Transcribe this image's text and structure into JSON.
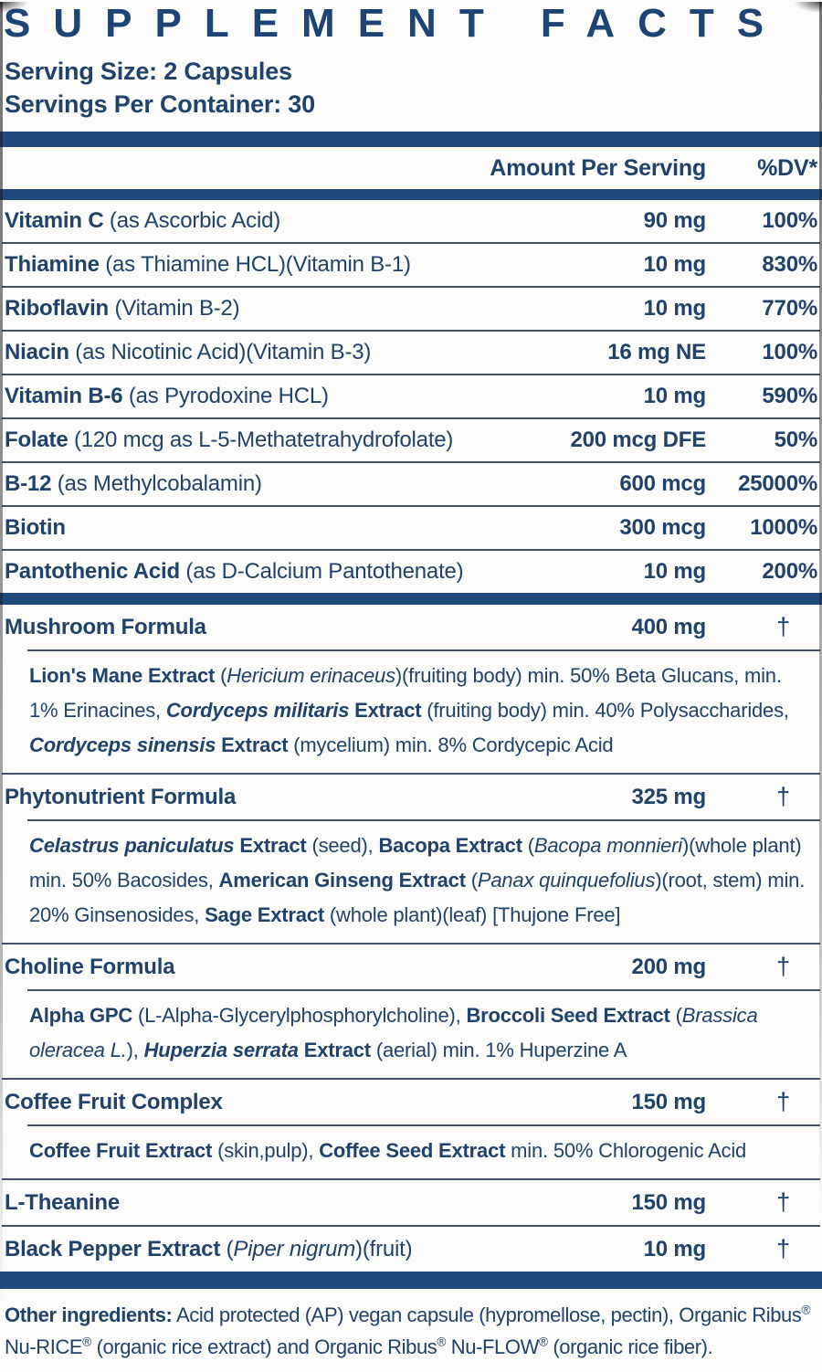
{
  "colors": {
    "title_navy": "#1d4474",
    "text_navy": "#20426b",
    "bar_blue": "#20497e",
    "rule_gray": "#46536a",
    "background": "#fbfbf9"
  },
  "header": {
    "title": "SUPPLEMENT FACTS",
    "serving_size": "Serving Size: 2 Capsules",
    "servings_per_container": "Servings Per Container: 30",
    "col_amount": "Amount Per Serving",
    "col_dv": "%DV*"
  },
  "vitamins": [
    {
      "segs": [
        {
          "t": "Vitamin C",
          "b": 1
        },
        {
          "t": " (as Ascorbic Acid)"
        }
      ],
      "amount": "90 mg",
      "dv": "100%"
    },
    {
      "segs": [
        {
          "t": "Thiamine",
          "b": 1
        },
        {
          "t": " (as Thiamine HCL)(Vitamin B-1)"
        }
      ],
      "amount": "10 mg",
      "dv": "830%"
    },
    {
      "segs": [
        {
          "t": "Riboflavin",
          "b": 1
        },
        {
          "t": " (Vitamin B-2)"
        }
      ],
      "amount": "10 mg",
      "dv": "770%"
    },
    {
      "segs": [
        {
          "t": "Niacin",
          "b": 1
        },
        {
          "t": " (as Nicotinic Acid)(Vitamin B-3)"
        }
      ],
      "amount": "16 mg NE",
      "dv": "100%"
    },
    {
      "segs": [
        {
          "t": "Vitamin B-6",
          "b": 1
        },
        {
          "t": " (as Pyrodoxine HCL)"
        }
      ],
      "amount": "10 mg",
      "dv": "590%"
    },
    {
      "segs": [
        {
          "t": "Folate",
          "b": 1
        },
        {
          "t": " (120 mcg as L-5-Methatetrahydrofolate)"
        }
      ],
      "amount": "200 mcg DFE",
      "dv": "50%"
    },
    {
      "segs": [
        {
          "t": "B-12",
          "b": 1
        },
        {
          "t": " (as Methylcobalamin)"
        }
      ],
      "amount": "600 mcg",
      "dv": "25000%"
    },
    {
      "segs": [
        {
          "t": "Biotin",
          "b": 1
        }
      ],
      "amount": "300 mcg",
      "dv": "1000%"
    },
    {
      "segs": [
        {
          "t": "Pantothenic Acid",
          "b": 1
        },
        {
          "t": " (as D-Calcium Pantothenate)"
        }
      ],
      "amount": "10 mg",
      "dv": "200%"
    }
  ],
  "sections": [
    {
      "segs": [
        {
          "t": "Mushroom Formula",
          "b": 1
        }
      ],
      "amount": "400 mg",
      "dv": "†",
      "sub": [
        {
          "t": "Lion's Mane Extract",
          "b": 1
        },
        {
          "t": " ("
        },
        {
          "t": "Hericium erinaceus",
          "i": 1
        },
        {
          "t": ")(fruiting body) min. 50% Beta Glucans, min. 1% Erinacines, "
        },
        {
          "t": "Cordyceps militaris",
          "b": 1,
          "i": 1
        },
        {
          "t": " Extract",
          "b": 1
        },
        {
          "t": " (fruiting body) min. 40% Polysaccharides, "
        },
        {
          "t": "Cordyceps sinensis",
          "b": 1,
          "i": 1
        },
        {
          "t": " Extract",
          "b": 1
        },
        {
          "t": " (mycelium) min. 8% Cordycepic Acid"
        }
      ]
    },
    {
      "segs": [
        {
          "t": "Phytonutrient Formula",
          "b": 1
        }
      ],
      "amount": "325 mg",
      "dv": "†",
      "sub": [
        {
          "t": "Celastrus paniculatus",
          "b": 1,
          "i": 1
        },
        {
          "t": " Extract",
          "b": 1
        },
        {
          "t": " (seed), "
        },
        {
          "t": "Bacopa Extract",
          "b": 1
        },
        {
          "t": " ("
        },
        {
          "t": "Bacopa monnieri",
          "i": 1
        },
        {
          "t": ")(whole plant) min. 50% Bacosides, "
        },
        {
          "t": "American Ginseng Extract",
          "b": 1
        },
        {
          "t": " ("
        },
        {
          "t": "Panax quinquefolius",
          "i": 1
        },
        {
          "t": ")(root, stem) min. 20% Ginsenosides, "
        },
        {
          "t": "Sage Extract",
          "b": 1
        },
        {
          "t": " (whole plant)(leaf) [Thujone Free]"
        }
      ]
    },
    {
      "segs": [
        {
          "t": "Choline Formula",
          "b": 1
        }
      ],
      "amount": "200 mg",
      "dv": "†",
      "sub": [
        {
          "t": "Alpha GPC",
          "b": 1
        },
        {
          "t": " (L-Alpha-Glycerylphosphorylcholine), "
        },
        {
          "t": "Broccoli Seed Extract",
          "b": 1
        },
        {
          "t": " ("
        },
        {
          "t": "Brassica oleracea L.",
          "i": 1
        },
        {
          "t": "), "
        },
        {
          "t": "Huperzia serrata",
          "b": 1,
          "i": 1
        },
        {
          "t": " Extract",
          "b": 1
        },
        {
          "t": " (aerial) min. 1% Huperzine A"
        }
      ]
    },
    {
      "segs": [
        {
          "t": "Coffee Fruit Complex",
          "b": 1
        }
      ],
      "amount": "150 mg",
      "dv": "†",
      "sub": [
        {
          "t": "Coffee Fruit Extract",
          "b": 1
        },
        {
          "t": " (skin,pulp), "
        },
        {
          "t": "Coffee Seed Extract",
          "b": 1
        },
        {
          "t": " min. 50% Chlorogenic Acid"
        }
      ]
    },
    {
      "segs": [
        {
          "t": "L-Theanine",
          "b": 1
        }
      ],
      "amount": "150 mg",
      "dv": "†",
      "sub": null
    },
    {
      "segs": [
        {
          "t": "Black Pepper Extract",
          "b": 1
        },
        {
          "t": " ("
        },
        {
          "t": "Piper nigrum",
          "i": 1
        },
        {
          "t": ")(fruit)"
        }
      ],
      "amount": "10 mg",
      "dv": "†",
      "sub": null
    }
  ],
  "footer": {
    "segs": [
      {
        "t": "Other ingredients:",
        "b": 1
      },
      {
        "t": " Acid protected (AP) vegan capsule (hypromellose, pectin), Organic Ribus"
      },
      {
        "t": "®",
        "s": 1
      },
      {
        "t": " Nu-RICE"
      },
      {
        "t": "®",
        "s": 1
      },
      {
        "t": " (organic rice extract) and Organic Ribus"
      },
      {
        "t": "®",
        "s": 1
      },
      {
        "t": " Nu-FLOW"
      },
      {
        "t": "®",
        "s": 1
      },
      {
        "t": " (organic rice fiber)."
      }
    ]
  }
}
